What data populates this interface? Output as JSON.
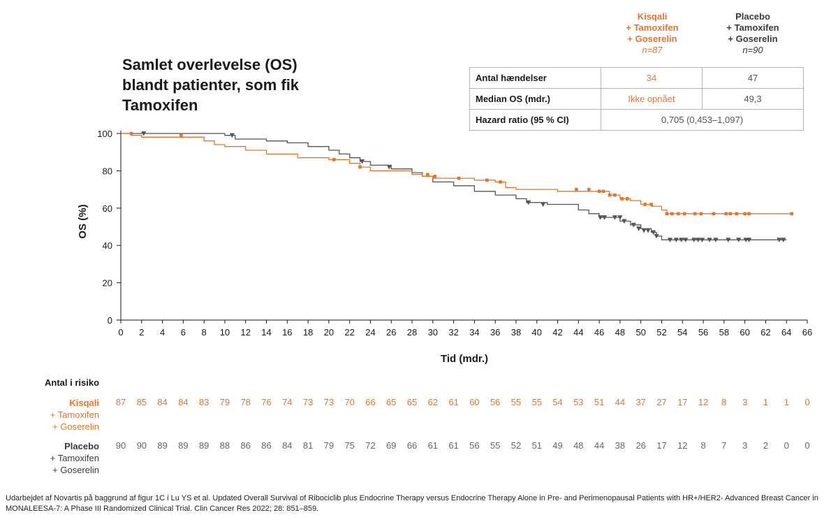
{
  "title": "Samlet overlevelse (OS) blandt patienter, som fik Tamoxifen",
  "colors": {
    "kisqali": "#e8742b",
    "placebo": "#555555"
  },
  "groups": {
    "kisqali": {
      "line1": "Kisqali",
      "line2": "+ Tamoxifen",
      "line3": "+ Goserelin",
      "n": "n=87"
    },
    "placebo": {
      "line1": "Placebo",
      "line2": "+ Tamoxifen",
      "line3": "+ Goserelin",
      "n": "n=90"
    }
  },
  "stats_table": {
    "rows": [
      {
        "label": "Antal hændelser",
        "kisqali": "34",
        "placebo": "47"
      },
      {
        "label": "Median OS (mdr.)",
        "kisqali": "Ikke opnået",
        "placebo": "49,3"
      }
    ],
    "hazard": {
      "label": "Hazard ratio (95 % CI)",
      "value": "0,705 (0,453–1,097)"
    }
  },
  "chart_data": {
    "type": "line",
    "title": "Samlet overlevelse (OS) blandt patienter, som fik Tamoxifen",
    "xlabel": "Tid (mdr.)",
    "ylabel": "OS (%)",
    "xlim": [
      0,
      66
    ],
    "ylim": [
      0,
      100
    ],
    "xticks": [
      0,
      2,
      4,
      6,
      8,
      10,
      12,
      14,
      16,
      18,
      20,
      22,
      24,
      26,
      28,
      30,
      32,
      34,
      36,
      38,
      40,
      42,
      44,
      46,
      48,
      50,
      52,
      54,
      56,
      58,
      60,
      62,
      64,
      66
    ],
    "yticks": [
      0,
      20,
      40,
      60,
      80,
      100
    ],
    "series": [
      {
        "name": "Kisqali + Tamoxifen + Goserelin",
        "color": "#e8742b",
        "marker": "square",
        "steps": [
          [
            0,
            100
          ],
          [
            1,
            99
          ],
          [
            2,
            98
          ],
          [
            8,
            96
          ],
          [
            9,
            94
          ],
          [
            10,
            93
          ],
          [
            12,
            91
          ],
          [
            14,
            89
          ],
          [
            17,
            87
          ],
          [
            20,
            86
          ],
          [
            22,
            84
          ],
          [
            23,
            82
          ],
          [
            24,
            80
          ],
          [
            28,
            78
          ],
          [
            29,
            77
          ],
          [
            30,
            76
          ],
          [
            34,
            75
          ],
          [
            36,
            74
          ],
          [
            37,
            71
          ],
          [
            38,
            70
          ],
          [
            40,
            70
          ],
          [
            42,
            69
          ],
          [
            46,
            69
          ],
          [
            47,
            67
          ],
          [
            48,
            65
          ],
          [
            49,
            64
          ],
          [
            50,
            62
          ],
          [
            51,
            61
          ],
          [
            52,
            59
          ],
          [
            52.5,
            57
          ],
          [
            64.5,
            57
          ]
        ],
        "censored": [
          [
            1,
            100
          ],
          [
            5.8,
            99
          ],
          [
            20.5,
            86
          ],
          [
            23,
            82
          ],
          [
            29.5,
            78
          ],
          [
            30.2,
            77
          ],
          [
            32.5,
            76
          ],
          [
            35.2,
            75
          ],
          [
            36.5,
            74
          ],
          [
            43.8,
            70
          ],
          [
            45,
            70
          ],
          [
            46,
            69
          ],
          [
            46.4,
            69
          ],
          [
            47,
            67
          ],
          [
            47.5,
            67
          ],
          [
            48.2,
            65
          ],
          [
            48.7,
            65
          ],
          [
            50.4,
            62
          ],
          [
            51,
            62
          ],
          [
            52.5,
            57
          ],
          [
            53,
            57
          ],
          [
            53.6,
            57
          ],
          [
            54.2,
            57
          ],
          [
            55.2,
            57
          ],
          [
            55.8,
            57
          ],
          [
            57,
            57
          ],
          [
            58.2,
            57
          ],
          [
            58.6,
            57
          ],
          [
            59.2,
            57
          ],
          [
            60,
            57
          ],
          [
            60.4,
            57
          ],
          [
            64.5,
            57
          ]
        ]
      },
      {
        "name": "Placebo + Tamoxifen + Goserelin",
        "color": "#555555",
        "marker": "triangle",
        "steps": [
          [
            0,
            100
          ],
          [
            8,
            100
          ],
          [
            10,
            99
          ],
          [
            11,
            97
          ],
          [
            14,
            96
          ],
          [
            16,
            95
          ],
          [
            18,
            93
          ],
          [
            20,
            91
          ],
          [
            21,
            89
          ],
          [
            22,
            87
          ],
          [
            23,
            85
          ],
          [
            24,
            83
          ],
          [
            26,
            81
          ],
          [
            28,
            79
          ],
          [
            29,
            77
          ],
          [
            30,
            74
          ],
          [
            32,
            72
          ],
          [
            34,
            69
          ],
          [
            36,
            67
          ],
          [
            38,
            65
          ],
          [
            39,
            63
          ],
          [
            41,
            62
          ],
          [
            44,
            59
          ],
          [
            45,
            57
          ],
          [
            46,
            55
          ],
          [
            48,
            53
          ],
          [
            49,
            51
          ],
          [
            50,
            49
          ],
          [
            51,
            47
          ],
          [
            51.5,
            45
          ],
          [
            52,
            43
          ],
          [
            64,
            43
          ]
        ],
        "censored": [
          [
            2.2,
            100
          ],
          [
            10.7,
            99
          ],
          [
            23.2,
            85
          ],
          [
            25.8,
            82
          ],
          [
            39.2,
            63
          ],
          [
            40.6,
            62
          ],
          [
            46.1,
            55
          ],
          [
            46.5,
            55
          ],
          [
            47.5,
            55
          ],
          [
            48,
            55
          ],
          [
            48.4,
            53
          ],
          [
            49.3,
            51
          ],
          [
            49.8,
            49
          ],
          [
            50.3,
            48
          ],
          [
            50.7,
            48
          ],
          [
            51.2,
            47
          ],
          [
            51.5,
            45
          ],
          [
            52.8,
            43
          ],
          [
            53.4,
            43
          ],
          [
            53.9,
            43
          ],
          [
            54.3,
            43
          ],
          [
            55.1,
            43
          ],
          [
            55.5,
            43
          ],
          [
            55.9,
            43
          ],
          [
            56.6,
            43
          ],
          [
            57.2,
            43
          ],
          [
            58.4,
            43
          ],
          [
            59.4,
            43
          ],
          [
            60.1,
            43
          ],
          [
            60.4,
            43
          ],
          [
            63.3,
            43
          ],
          [
            63.7,
            43
          ]
        ]
      }
    ]
  },
  "risk_table": {
    "title": "Antal i risiko",
    "times": [
      0,
      2,
      4,
      6,
      8,
      10,
      12,
      14,
      16,
      18,
      20,
      22,
      24,
      26,
      28,
      30,
      32,
      34,
      36,
      38,
      40,
      42,
      44,
      46,
      48,
      50,
      52,
      54,
      56,
      58,
      60,
      62,
      64,
      66
    ],
    "kisqali": [
      "87",
      "85",
      "84",
      "84",
      "83",
      "79",
      "78",
      "76",
      "74",
      "73",
      "73",
      "70",
      "66",
      "65",
      "65",
      "62",
      "61",
      "60",
      "56",
      "55",
      "55",
      "54",
      "53",
      "51",
      "44",
      "37",
      "27",
      "17",
      "12",
      "8",
      "3",
      "1",
      "1",
      "0"
    ],
    "placebo": [
      "90",
      "90",
      "89",
      "89",
      "89",
      "88",
      "86",
      "86",
      "84",
      "81",
      "79",
      "75",
      "72",
      "69",
      "66",
      "61",
      "61",
      "56",
      "55",
      "52",
      "51",
      "49",
      "48",
      "44",
      "38",
      "26",
      "17",
      "12",
      "8",
      "7",
      "3",
      "2",
      "0",
      "0"
    ]
  },
  "footnote": "Udarbejdet af Novartis på baggrund af figur 1C i Lu YS et al. Updated Overall Survival of Ribociclib plus Endocrine Therapy versus Endocrine Therapy Alone in Pre- and Perimenopausal Patients with HR+/HER2- Advanced Breast Cancer in MONALEESA-7: A Phase III Randomized Clinical Trial. Clin Cancer Res 2022; 28: 851–859."
}
